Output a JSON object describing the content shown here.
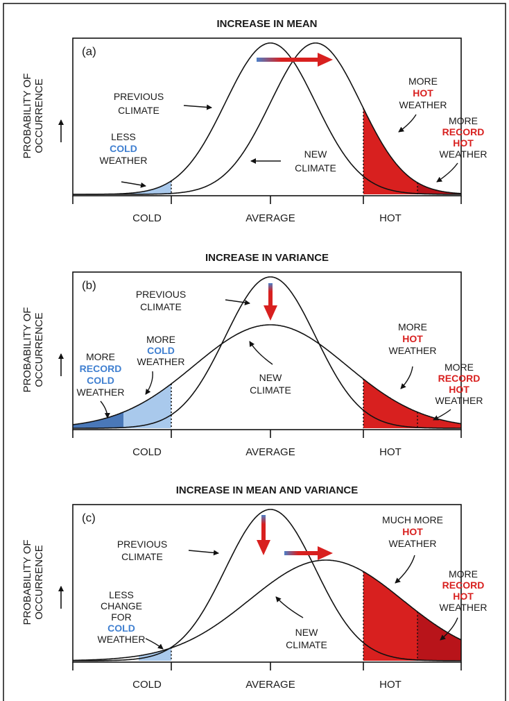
{
  "y_axis_label": [
    "PROBABILITY OF",
    "OCCURRENCE"
  ],
  "x_labels": [
    "COLD",
    "AVERAGE",
    "HOT"
  ],
  "panels": [
    {
      "title": "INCREASE IN MEAN",
      "label": "(a)",
      "previous": [
        "PREVIOUS",
        "CLIMATE"
      ],
      "new": [
        "NEW",
        "CLIMATE"
      ],
      "notes": [
        [
          "LESS",
          "COLD",
          "WEATHER"
        ],
        [
          "MORE",
          "HOT",
          "WEATHER"
        ],
        [
          "MORE",
          "RECORD",
          "HOT",
          "WEATHER"
        ]
      ]
    },
    {
      "title": "INCREASE IN VARIANCE",
      "label": "(b)",
      "previous": [
        "PREVIOUS",
        "CLIMATE"
      ],
      "new": [
        "NEW",
        "CLIMATE"
      ],
      "notes": [
        [
          "MORE",
          "RECORD",
          "COLD",
          "WEATHER"
        ],
        [
          "MORE",
          "COLD",
          "WEATHER"
        ],
        [
          "MORE",
          "HOT",
          "WEATHER"
        ],
        [
          "MORE",
          "RECORD",
          "HOT",
          "WEATHER"
        ]
      ]
    },
    {
      "title": "INCREASE IN MEAN AND VARIANCE",
      "label": "(c)",
      "previous": [
        "PREVIOUS",
        "CLIMATE"
      ],
      "new": [
        "NEW",
        "CLIMATE"
      ],
      "notes": [
        [
          "LESS",
          "CHANGE",
          "FOR",
          "COLD",
          "WEATHER"
        ],
        [
          "MUCH MORE",
          "HOT",
          "WEATHER"
        ],
        [
          "MORE",
          "RECORD",
          "HOT",
          "WEATHER"
        ]
      ]
    }
  ]
}
